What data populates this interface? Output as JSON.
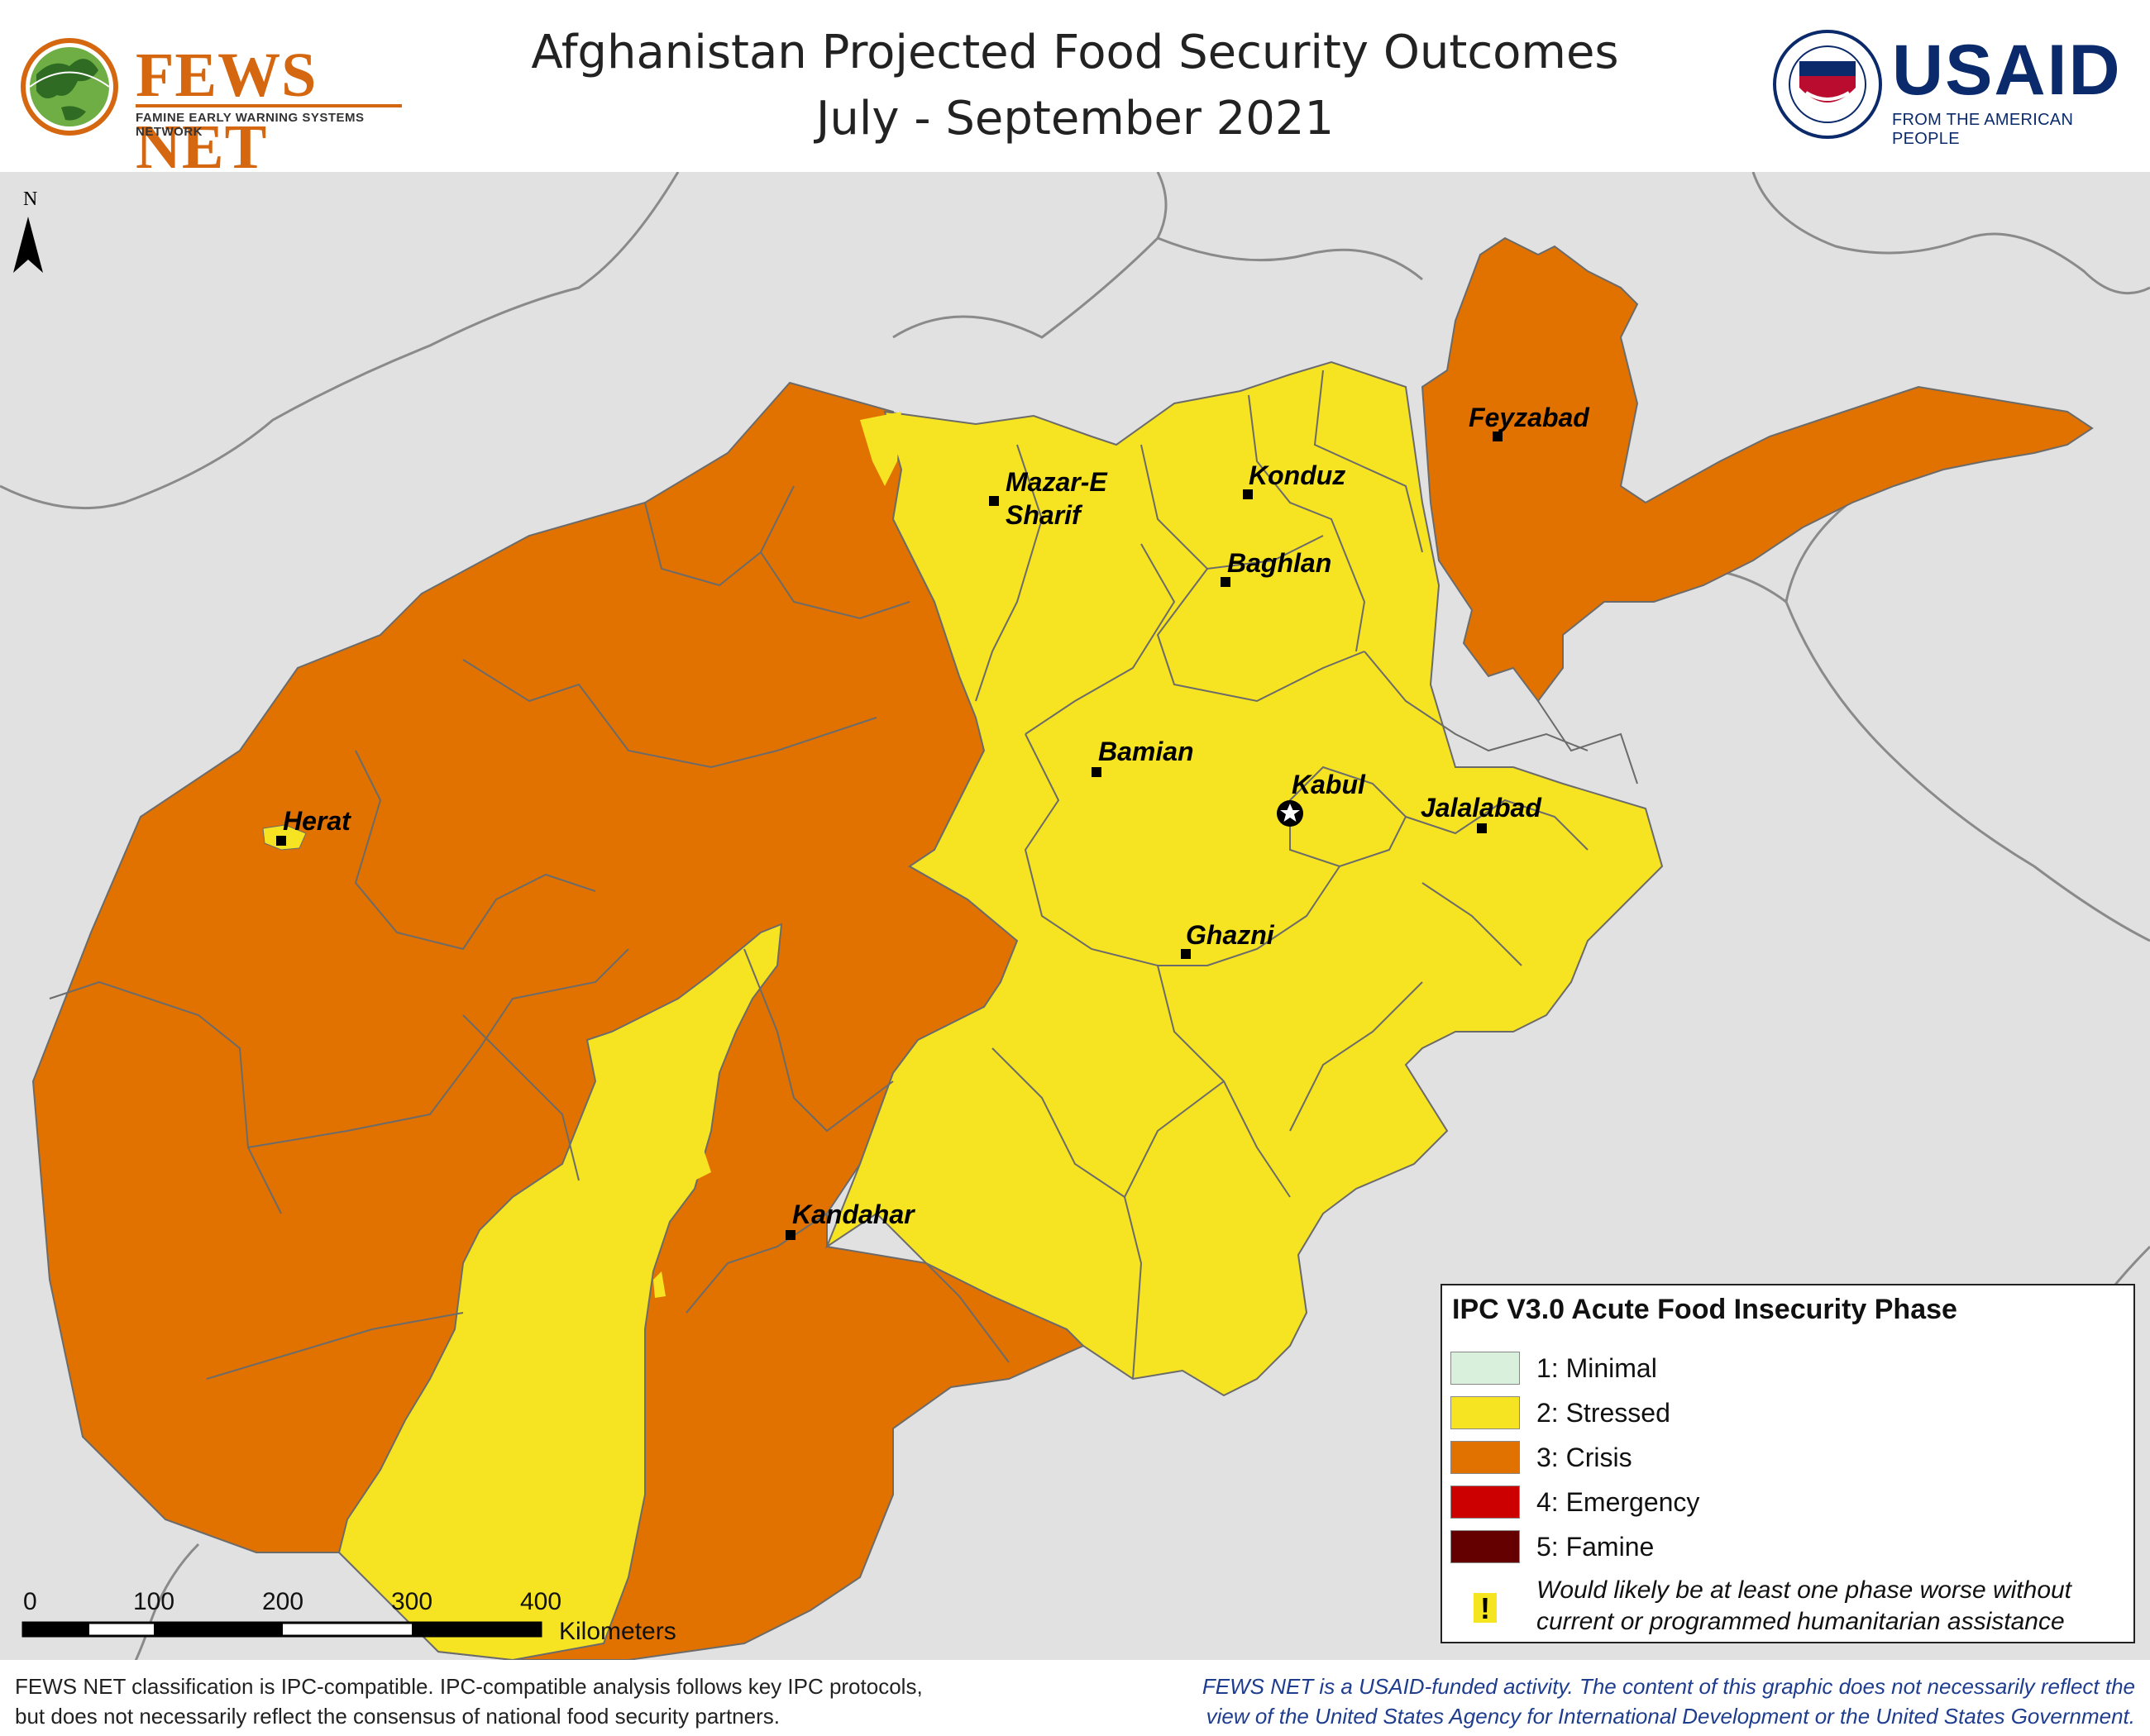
{
  "header": {
    "title_line1": "Afghanistan Projected Food Security Outcomes",
    "title_line2": "July - September 2021",
    "fews_logo_name": "FEWS NET",
    "fews_logo_subtitle": "FAMINE EARLY WARNING SYSTEMS NETWORK",
    "usaid_logo_name": "USAID",
    "usaid_logo_tagline": "FROM THE AMERICAN PEOPLE",
    "usaid_seal_text": "UNITED STATES AGENCY FOR INTERNATIONAL DEVELOPMENT"
  },
  "map": {
    "north_label": "N",
    "cities": [
      {
        "name": "Feyzabad",
        "line2": ""
      },
      {
        "name": "Mazar-E",
        "line2": "Sharif"
      },
      {
        "name": "Konduz",
        "line2": ""
      },
      {
        "name": "Baghlan",
        "line2": ""
      },
      {
        "name": "Herat",
        "line2": ""
      },
      {
        "name": "Bamian",
        "line2": ""
      },
      {
        "name": "Kabul",
        "line2": ""
      },
      {
        "name": "Jalalabad",
        "line2": ""
      },
      {
        "name": "Ghazni",
        "line2": ""
      },
      {
        "name": "Kandahar",
        "line2": ""
      }
    ],
    "capital": "Kabul"
  },
  "legend": {
    "title": "IPC V3.0 Acute Food Insecurity Phase",
    "phases": [
      {
        "label": "1: Minimal",
        "color": "#d9f0dc"
      },
      {
        "label": "2: Stressed",
        "color": "#f6e321"
      },
      {
        "label": "3: Crisis",
        "color": "#e17200"
      },
      {
        "label": "4: Emergency",
        "color": "#cc0000"
      },
      {
        "label": "5: Famine",
        "color": "#640000"
      }
    ],
    "note_icon": "!",
    "note_line1": "Would likely be at least one phase worse without",
    "note_line2": "current or programmed humanitarian assistance"
  },
  "scale": {
    "ticks": [
      "0",
      "100",
      "200",
      "300",
      "400"
    ],
    "unit": "Kilometers"
  },
  "footer": {
    "left": "FEWS NET classification is IPC-compatible. IPC-compatible analysis follows key IPC protocols,\nbut does not necessarily reflect the consensus of national food security partners.",
    "right": "FEWS NET is a USAID-funded activity. The content of this graphic does not necessarily reflect the\nview of the United States Agency for International Development or the United States Government."
  },
  "colors": {
    "background": "#e1e1e1",
    "stressed": "#f6e321",
    "crisis": "#e17200",
    "border": "#6b6b6b"
  }
}
